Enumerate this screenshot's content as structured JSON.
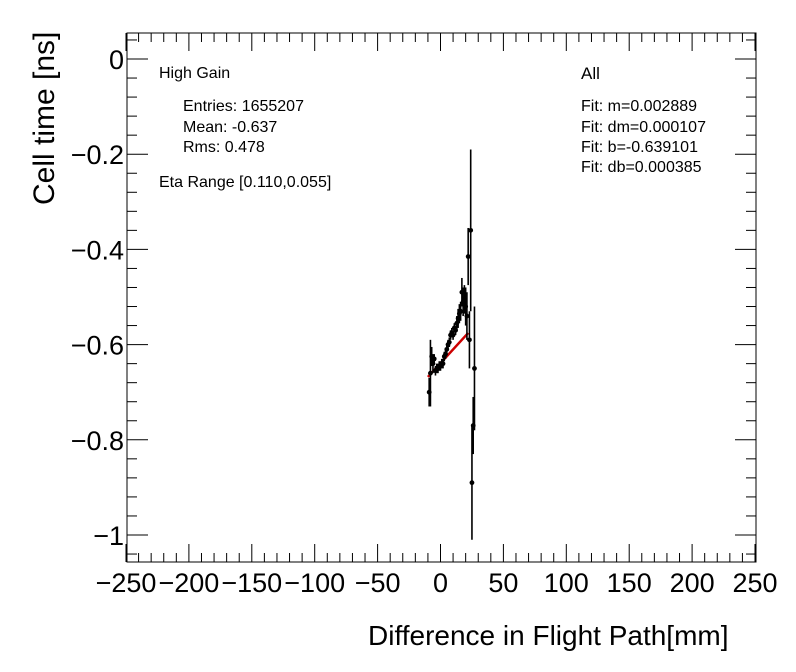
{
  "chart_data": {
    "type": "scatter",
    "xlabel": "Difference in Flight Path[mm]",
    "ylabel": "Cell time [ns]",
    "xlim": [
      -250,
      250
    ],
    "ylim": [
      -1.05,
      0.05
    ],
    "x_ticks": [
      -250,
      -200,
      -150,
      -100,
      -50,
      0,
      50,
      100,
      150,
      200,
      250
    ],
    "x_tick_labels": [
      "−250",
      "−200",
      "−150",
      "−100",
      "−50",
      "0",
      "50",
      "100",
      "150",
      "200",
      "250"
    ],
    "y_ticks": [
      0,
      -0.2,
      -0.4,
      -0.6,
      -0.8,
      -1
    ],
    "y_tick_labels": [
      "0",
      "−0.2",
      "−0.4",
      "−0.6",
      "−0.8",
      "−1"
    ],
    "grid": false,
    "series": [
      {
        "marker_color": "#000000",
        "points": [
          {
            "x": -9,
            "y": -0.7,
            "err": 0.03
          },
          {
            "x": -8,
            "y": -0.66,
            "err": 0.07
          },
          {
            "x": -7,
            "y": -0.625,
            "err": 0.02
          },
          {
            "x": -6,
            "y": -0.64,
            "err": 0.02
          },
          {
            "x": -5,
            "y": -0.63,
            "err": 0.01
          },
          {
            "x": -4,
            "y": -0.655,
            "err": 0.01
          },
          {
            "x": -3,
            "y": -0.65,
            "err": 0.01
          },
          {
            "x": -2,
            "y": -0.65,
            "err": 0.01
          },
          {
            "x": -1,
            "y": -0.645,
            "err": 0.01
          },
          {
            "x": 0,
            "y": -0.645,
            "err": 0.01
          },
          {
            "x": 1,
            "y": -0.64,
            "err": 0.01
          },
          {
            "x": 2,
            "y": -0.64,
            "err": 0.01
          },
          {
            "x": 3,
            "y": -0.625,
            "err": 0.01
          },
          {
            "x": 4,
            "y": -0.62,
            "err": 0.01
          },
          {
            "x": 5,
            "y": -0.61,
            "err": 0.01
          },
          {
            "x": 6,
            "y": -0.6,
            "err": 0.01
          },
          {
            "x": 7,
            "y": -0.595,
            "err": 0.01
          },
          {
            "x": 8,
            "y": -0.58,
            "err": 0.01
          },
          {
            "x": 9,
            "y": -0.575,
            "err": 0.01
          },
          {
            "x": 10,
            "y": -0.58,
            "err": 0.01
          },
          {
            "x": 11,
            "y": -0.565,
            "err": 0.01
          },
          {
            "x": 12,
            "y": -0.57,
            "err": 0.01
          },
          {
            "x": 13,
            "y": -0.555,
            "err": 0.015
          },
          {
            "x": 14,
            "y": -0.545,
            "err": 0.02
          },
          {
            "x": 15,
            "y": -0.535,
            "err": 0.02
          },
          {
            "x": 16,
            "y": -0.53,
            "err": 0.02
          },
          {
            "x": 17,
            "y": -0.49,
            "err": 0.03
          },
          {
            "x": 18,
            "y": -0.51,
            "err": 0.03
          },
          {
            "x": 19,
            "y": -0.505,
            "err": 0.03
          },
          {
            "x": 20,
            "y": -0.52,
            "err": 0.04
          },
          {
            "x": 21,
            "y": -0.54,
            "err": 0.05
          },
          {
            "x": 22,
            "y": -0.415,
            "err": 0.06
          },
          {
            "x": 23,
            "y": -0.59,
            "err": 0.06
          },
          {
            "x": 24,
            "y": -0.36,
            "err": 0.17
          },
          {
            "x": 25,
            "y": -0.89,
            "err": 0.12
          },
          {
            "x": 26,
            "y": -0.77,
            "err": 0.06
          },
          {
            "x": 27,
            "y": -0.65,
            "err": 0.13
          }
        ]
      }
    ],
    "fit": {
      "line_color": "#cc0000",
      "x_range": [
        -10,
        22
      ],
      "m": 0.002889,
      "b": -0.639101
    }
  },
  "stats": {
    "title": "High Gain",
    "entries": "Entries: 1655207",
    "mean": "Mean: -0.637",
    "rms": "Rms: 0.478",
    "eta": "Eta Range [0.110,0.055]"
  },
  "fit_box": {
    "title": "All",
    "m": "Fit: m=0.002889",
    "dm": "Fit: dm=0.000107",
    "b": "Fit: b=-0.639101",
    "db": "Fit: db=0.000385"
  }
}
